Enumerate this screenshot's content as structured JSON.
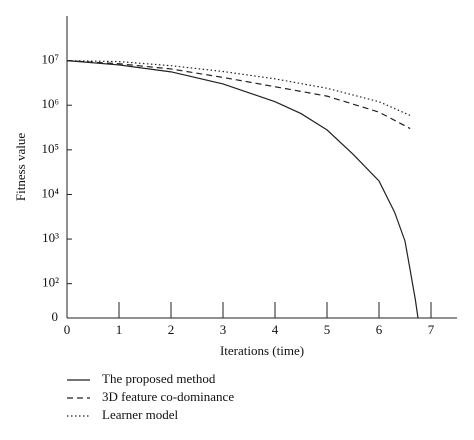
{
  "chart_data": {
    "type": "line",
    "xlabel": "Iterations (time)",
    "ylabel": "Fitness value",
    "y_origin_label": "0",
    "log_y": true,
    "xlim": [
      0,
      7.5
    ],
    "xticks": [
      0,
      1,
      2,
      3,
      4,
      5,
      6,
      7
    ],
    "ylim": [
      17,
      100000000
    ],
    "yticks": [
      {
        "value": 100,
        "label": "10²"
      },
      {
        "value": 1000,
        "label": "10³"
      },
      {
        "value": 10000,
        "label": "10⁴"
      },
      {
        "value": 100000,
        "label": "10⁵"
      },
      {
        "value": 1000000,
        "label": "10⁶"
      },
      {
        "value": 10000000,
        "label": "10⁷"
      }
    ],
    "legend": "bottom-left",
    "series": [
      {
        "name": "The proposed method",
        "color": "#222",
        "dash": "solid",
        "x": [
          0,
          1,
          2,
          3,
          4,
          4.5,
          5,
          5.5,
          6,
          6.3,
          6.5,
          6.6,
          6.7,
          6.75
        ],
        "values": [
          10000000,
          8000000,
          5600000,
          3000000,
          1200000,
          650000,
          280000,
          80000,
          20000,
          4000,
          900,
          200,
          43,
          17
        ]
      },
      {
        "name": "3D feature co-dominance",
        "color": "#222",
        "dash": "dashed",
        "x": [
          0,
          1,
          2,
          3,
          4,
          5,
          6,
          6.6
        ],
        "values": [
          10000000,
          8500000,
          6500000,
          4200000,
          2600000,
          1600000,
          700000,
          300000
        ]
      },
      {
        "name": "Learner model",
        "color": "#222",
        "dash": "dotted",
        "x": [
          0,
          1,
          2,
          3,
          4,
          5,
          6,
          6.6
        ],
        "values": [
          10000000,
          9500000,
          7700000,
          5700000,
          3900000,
          2400000,
          1200000,
          590000
        ]
      }
    ]
  }
}
